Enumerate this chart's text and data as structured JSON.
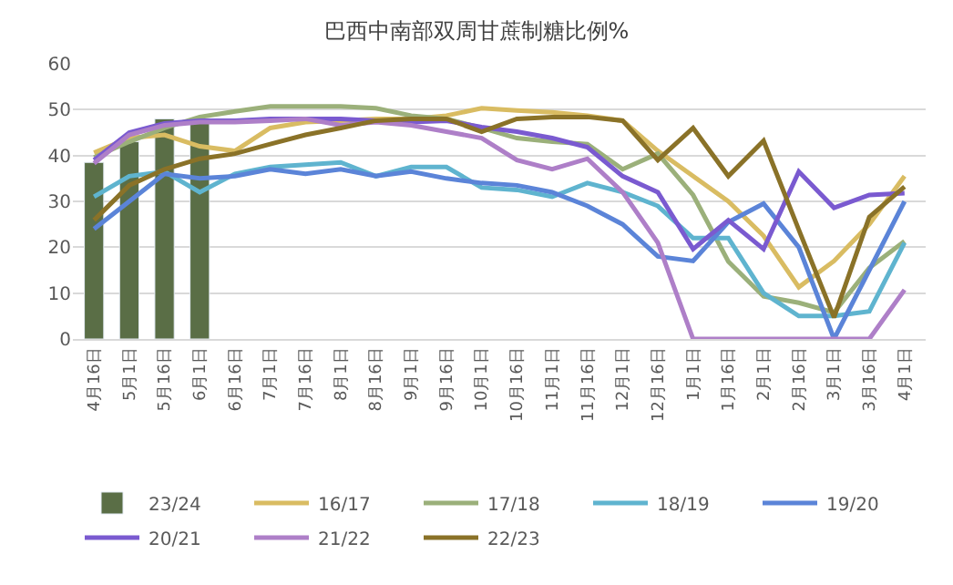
{
  "chart_data": {
    "type": "line",
    "title": "巴西中南部双周甘蔗制糖比例%",
    "categories": [
      "4月16日",
      "5月1日",
      "5月16日",
      "6月1日",
      "6月16日",
      "7月1日",
      "7月16日",
      "8月1日",
      "8月16日",
      "9月1日",
      "9月16日",
      "10月1日",
      "10月16日",
      "11月1日",
      "11月16日",
      "12月1日",
      "12月16日",
      "1月1日",
      "1月16日",
      "2月1日",
      "2月16日",
      "3月1日",
      "3月16日",
      "4月1日"
    ],
    "ylim": [
      0,
      60
    ],
    "yticks": [
      0,
      10,
      20,
      30,
      40,
      50,
      60
    ],
    "grid": "y",
    "legend": "bottom",
    "marker": "none",
    "series": [
      {
        "name": "23/24",
        "type": "bar",
        "color": "#5a6e46",
        "values": [
          38.5,
          43,
          48,
          48,
          null,
          null,
          null,
          null,
          null,
          null,
          null,
          null,
          null,
          null,
          null,
          null,
          null,
          null,
          null,
          null,
          null,
          null,
          null,
          null
        ]
      },
      {
        "name": "16/17",
        "color": "#d9bc62",
        "values": [
          40.6,
          43.8,
          44.5,
          42,
          41,
          46,
          47.3,
          47.6,
          48,
          48,
          48.7,
          50.3,
          49.8,
          49.4,
          48.7,
          47.6,
          41,
          35.5,
          30,
          22.5,
          11.3,
          17,
          25,
          35.5
        ]
      },
      {
        "name": "17/18",
        "color": "#9bb07a",
        "values": [
          39.6,
          43,
          46,
          48.4,
          49.6,
          50.7,
          50.7,
          50.7,
          50.3,
          48.7,
          48,
          46,
          43.8,
          43,
          42.5,
          37,
          40.4,
          31.4,
          16.9,
          9.3,
          7.9,
          5.8,
          15.5,
          21.3
        ]
      },
      {
        "name": "18/19",
        "color": "#5fb4cf",
        "values": [
          31,
          35.5,
          36.5,
          32,
          36,
          37.5,
          38,
          38.5,
          35.5,
          37.5,
          37.5,
          33,
          32.5,
          31,
          34,
          32,
          29,
          22,
          22,
          10,
          5,
          5,
          6,
          21
        ]
      },
      {
        "name": "19/20",
        "color": "#5b84d8",
        "values": [
          24,
          30,
          36,
          35,
          35.5,
          37,
          36,
          37,
          35.5,
          36.5,
          35,
          34,
          33.5,
          32,
          29,
          25,
          18,
          17,
          25.5,
          29.5,
          20,
          0,
          15,
          30
        ]
      },
      {
        "name": "20/21",
        "color": "#7a5ad0",
        "values": [
          39,
          45,
          47,
          47.6,
          47.6,
          48,
          48,
          48,
          47.6,
          47.3,
          47.6,
          46.2,
          45.2,
          43.8,
          41.8,
          35.5,
          32,
          19.6,
          25.9,
          19.6,
          36.5,
          28.6,
          31.4,
          31.8
        ]
      },
      {
        "name": "21/22",
        "color": "#ae7fc8",
        "values": [
          38.3,
          44.5,
          46.6,
          47.3,
          47.3,
          47.6,
          48,
          46.6,
          47.3,
          46.6,
          45.2,
          43.8,
          39,
          37,
          39.3,
          32,
          21,
          0,
          0,
          0,
          0,
          0,
          0,
          10.7
        ]
      },
      {
        "name": "22/23",
        "color": "#8a7228",
        "values": [
          25.9,
          33.5,
          37,
          39.3,
          40.4,
          42.5,
          44.5,
          46,
          47.6,
          48,
          48,
          45.2,
          48,
          48.4,
          48.4,
          47.6,
          39,
          46,
          35.5,
          43.2,
          23.8,
          4.7,
          26.6,
          33.2
        ]
      }
    ]
  }
}
